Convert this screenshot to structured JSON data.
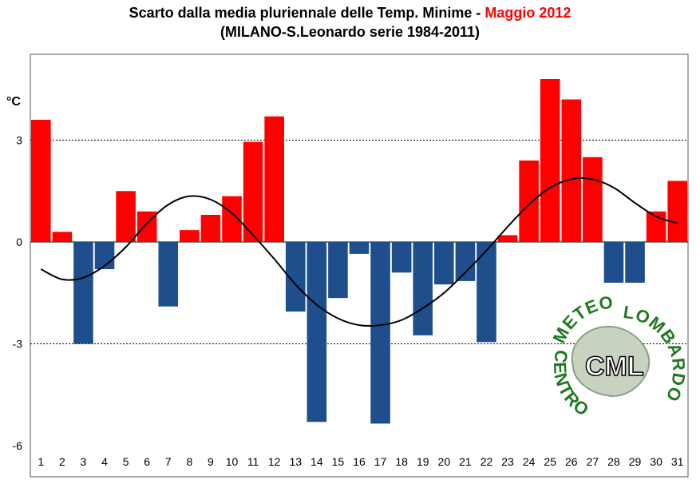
{
  "title": {
    "line1_prefix": "Scarto dalla media pluriennale delle Temp. Minime - ",
    "line1_highlight": "Maggio 2012",
    "line2": "(MILANO-S.Leonardo serie 1984-2011)"
  },
  "logo": {
    "top_text": "METEO",
    "right_text": "LOMBARDO",
    "left_text": "CENTRO",
    "center_text": "CML"
  },
  "colors": {
    "positive": "#ff0000",
    "negative": "#1f4e8c",
    "trend": "#000000"
  },
  "chart_data": {
    "type": "bar",
    "ylabel": "°C",
    "ylim": [
      -6,
      6
    ],
    "yticks": [
      3,
      0,
      -3,
      -6
    ],
    "grid": "dotted at ±3",
    "categories": [
      "1",
      "2",
      "3",
      "4",
      "5",
      "6",
      "7",
      "8",
      "9",
      "10",
      "11",
      "12",
      "13",
      "14",
      "15",
      "16",
      "17",
      "18",
      "19",
      "20",
      "21",
      "22",
      "23",
      "24",
      "25",
      "26",
      "27",
      "28",
      "29",
      "30",
      "31"
    ],
    "values": [
      3.6,
      0.3,
      -3.0,
      -0.8,
      1.5,
      0.9,
      -1.9,
      0.35,
      0.8,
      1.35,
      2.95,
      3.7,
      -2.05,
      -5.3,
      -1.65,
      -0.35,
      -5.35,
      -0.9,
      -2.75,
      -1.25,
      -1.15,
      -2.95,
      0.2,
      2.4,
      4.8,
      4.2,
      2.5,
      -1.2,
      -1.2,
      0.9,
      1.8
    ],
    "trend": [
      -0.8,
      -1.1,
      -1.05,
      -0.7,
      -0.15,
      0.55,
      1.1,
      1.35,
      1.25,
      0.85,
      0.2,
      -0.5,
      -1.25,
      -1.85,
      -2.25,
      -2.45,
      -2.45,
      -2.3,
      -1.95,
      -1.5,
      -0.9,
      -0.25,
      0.45,
      1.1,
      1.6,
      1.85,
      1.85,
      1.6,
      1.15,
      0.75,
      0.55
    ]
  }
}
